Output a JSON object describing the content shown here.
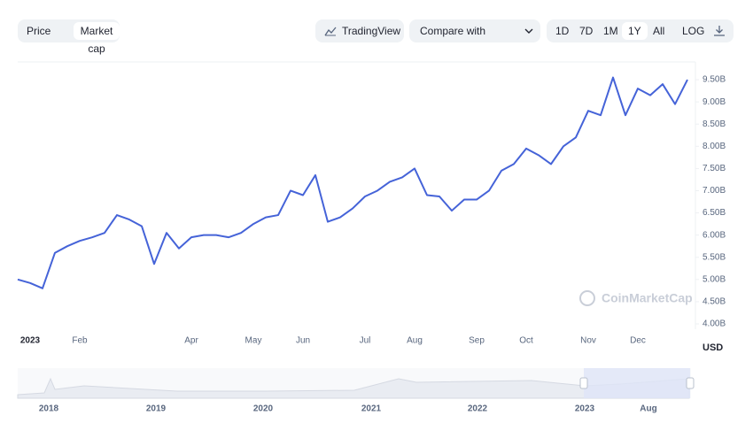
{
  "toolbar": {
    "tabs": [
      "Price",
      "Market cap"
    ],
    "tradingview": "TradingView",
    "compare": "Compare with",
    "ranges": [
      "1D",
      "7D",
      "1M",
      "1Y",
      "All",
      "LOG"
    ]
  },
  "chart_data": {
    "type": "line",
    "color": "#4563d8",
    "categories": [
      null,
      "2023",
      null,
      null,
      null,
      "Feb",
      null,
      null,
      null,
      null,
      null,
      null,
      null,
      null,
      "Apr",
      null,
      null,
      null,
      null,
      "May",
      null,
      null,
      null,
      "Jun",
      null,
      null,
      null,
      null,
      "Jul",
      null,
      null,
      null,
      "Aug",
      null,
      null,
      null,
      null,
      "Sep",
      null,
      null,
      null,
      "Oct",
      null,
      null,
      null,
      null,
      "Nov",
      null,
      null,
      null,
      "Dec",
      null,
      null,
      null,
      null
    ],
    "values": [
      5.0,
      4.92,
      4.8,
      5.6,
      5.75,
      5.87,
      5.95,
      6.05,
      6.45,
      6.35,
      6.2,
      5.35,
      6.05,
      5.7,
      5.95,
      6.0,
      6.0,
      5.95,
      6.05,
      6.25,
      6.4,
      6.45,
      7.0,
      6.9,
      7.35,
      6.3,
      6.4,
      6.6,
      6.87,
      7.0,
      7.2,
      7.3,
      7.5,
      6.9,
      6.87,
      6.55,
      6.8,
      6.8,
      7.0,
      7.45,
      7.6,
      7.95,
      7.8,
      7.6,
      8.0,
      8.2,
      8.8,
      8.7,
      9.55,
      8.7,
      9.3,
      9.15,
      9.4,
      8.95,
      9.5
    ],
    "ylim": [
      3.9,
      9.9
    ],
    "yticks": [
      {
        "value": 4.0,
        "label": "4.00B"
      },
      {
        "value": 4.5,
        "label": "4.50B"
      },
      {
        "value": 5.0,
        "label": "5.00B"
      },
      {
        "value": 5.5,
        "label": "5.50B"
      },
      {
        "value": 6.0,
        "label": "6.00B"
      },
      {
        "value": 6.5,
        "label": "6.50B"
      },
      {
        "value": 7.0,
        "label": "7.00B"
      },
      {
        "value": 7.5,
        "label": "7.50B"
      },
      {
        "value": 8.0,
        "label": "8.00B"
      },
      {
        "value": 8.5,
        "label": "8.50B"
      },
      {
        "value": 9.0,
        "label": "9.00B"
      },
      {
        "value": 9.5,
        "label": "9.50B"
      }
    ],
    "currency": "USD",
    "watermark": "CoinMarketCap",
    "grid": false
  },
  "navigator": {
    "labels": [
      "2018",
      "2019",
      "2020",
      "2021",
      "2022",
      "2023",
      "Aug"
    ]
  }
}
